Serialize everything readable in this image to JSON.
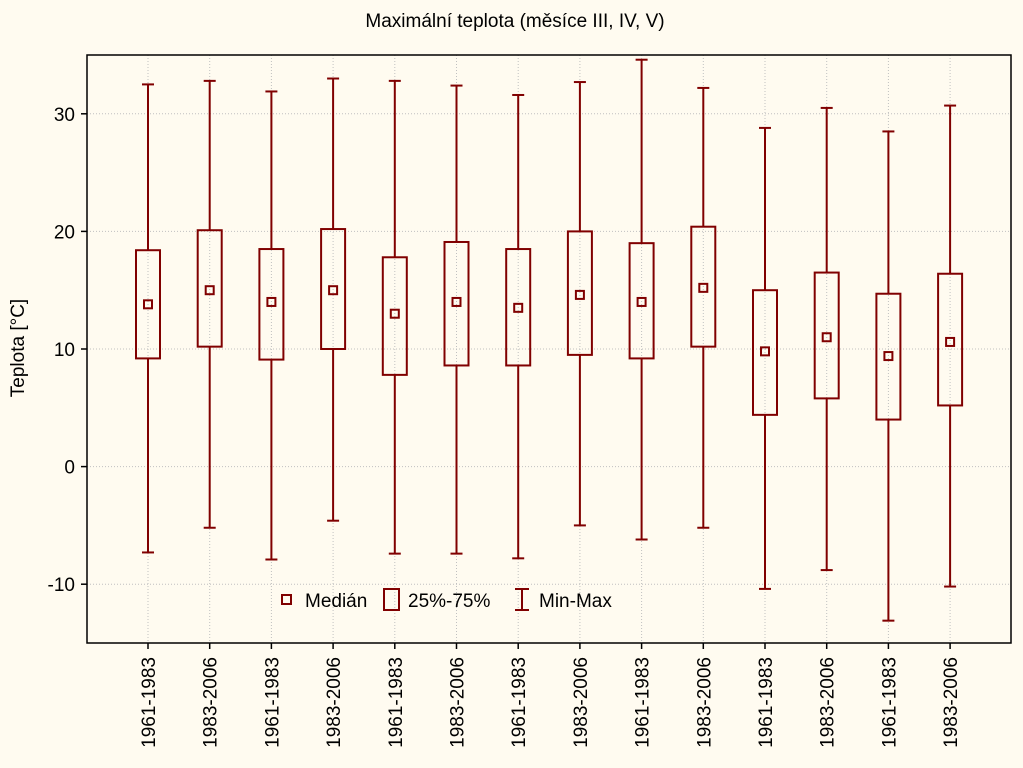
{
  "chart_data": {
    "type": "boxplot",
    "title": "Maximální teplota (měsíce III, IV, V)",
    "xlabel": "",
    "ylabel": "Teplota [°C]",
    "ylim": [
      -15,
      35
    ],
    "yticks": [
      -10,
      0,
      10,
      20,
      30
    ],
    "grid": true,
    "legend_position": "bottom-left",
    "categories": [
      "1961-1983",
      "1983-2006",
      "1961-1983",
      "1983-2006",
      "1961-1983",
      "1983-2006",
      "1961-1983",
      "1983-2006",
      "1961-1983",
      "1983-2006",
      "1961-1983",
      "1983-2006",
      "1961-1983",
      "1983-2006"
    ],
    "median": [
      13.8,
      15.0,
      14.0,
      15.0,
      13.0,
      14.0,
      13.5,
      14.6,
      14.0,
      15.2,
      9.8,
      11.0,
      9.4,
      10.6
    ],
    "q1": [
      9.2,
      10.2,
      9.1,
      10.0,
      7.8,
      8.6,
      8.6,
      9.5,
      9.2,
      10.2,
      4.4,
      5.8,
      4.0,
      5.2
    ],
    "q3": [
      18.4,
      20.1,
      18.5,
      20.2,
      17.8,
      19.1,
      18.5,
      20.0,
      19.0,
      20.4,
      15.0,
      16.5,
      14.7,
      16.4
    ],
    "min": [
      -7.3,
      -5.2,
      -7.9,
      -4.6,
      -7.4,
      -7.4,
      -7.8,
      -5.0,
      -6.2,
      -5.2,
      -10.4,
      -8.8,
      -13.1,
      -10.2
    ],
    "max": [
      32.5,
      32.8,
      31.9,
      33.0,
      32.8,
      32.4,
      31.6,
      32.7,
      34.6,
      32.2,
      28.8,
      30.5,
      28.5,
      30.7
    ],
    "legend": {
      "median": "Medián",
      "box": "25%-75%",
      "whisker": "Min-Max"
    },
    "colors": {
      "series": "#800000",
      "background": "#fffbf0",
      "grid": "#c0c0c0"
    }
  }
}
